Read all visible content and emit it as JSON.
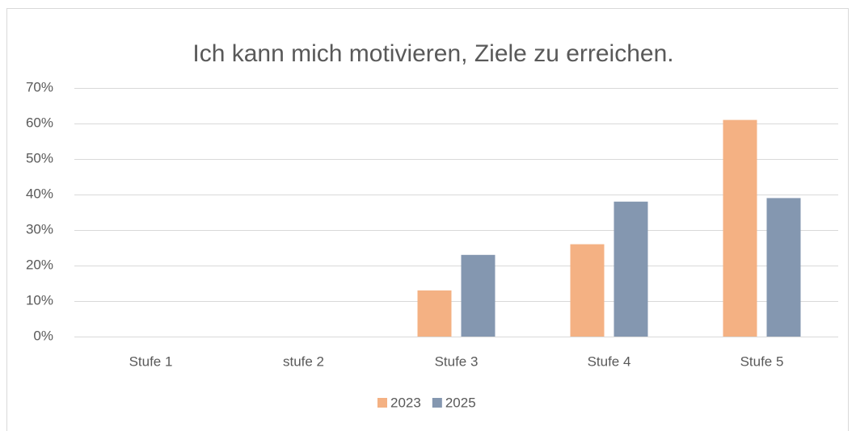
{
  "chart_data": {
    "type": "bar",
    "title": "Ich kann mich motivieren, Ziele zu erreichen.",
    "categories": [
      "Stufe 1",
      "stufe 2",
      "Stufe 3",
      "Stufe 4",
      "Stufe 5"
    ],
    "series": [
      {
        "name": "2023",
        "color": "#f4b183",
        "values": [
          0,
          0,
          13,
          26,
          61
        ]
      },
      {
        "name": "2025",
        "color": "#8497b0",
        "values": [
          0,
          0,
          23,
          38,
          39
        ]
      }
    ],
    "ylim": [
      0,
      70
    ],
    "yticks": [
      {
        "value": 0,
        "label": "0%"
      },
      {
        "value": 10,
        "label": "10%"
      },
      {
        "value": 20,
        "label": "20%"
      },
      {
        "value": 30,
        "label": "30%"
      },
      {
        "value": 40,
        "label": "40%"
      },
      {
        "value": 50,
        "label": "50%"
      },
      {
        "value": 60,
        "label": "60%"
      },
      {
        "value": 70,
        "label": "70%"
      }
    ],
    "grid": true,
    "legend": "bottom"
  }
}
